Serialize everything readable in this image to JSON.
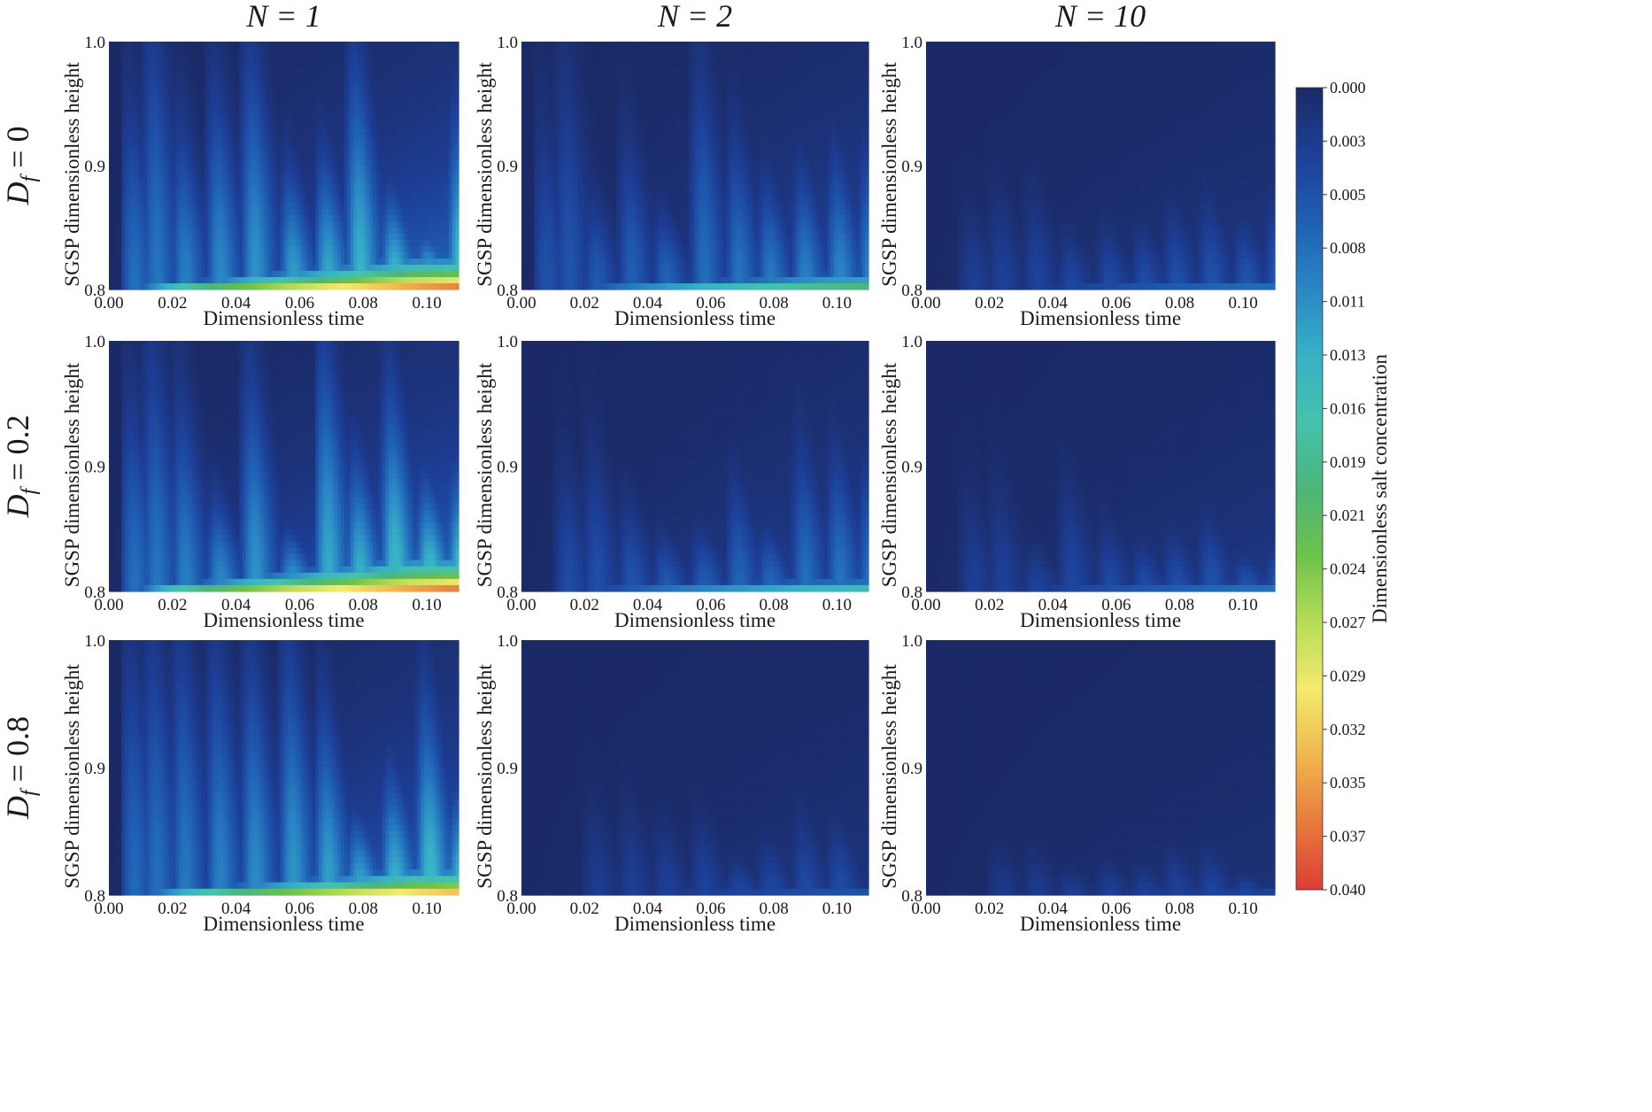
{
  "chart_data": {
    "type": "heatmap",
    "layout": "3x3 grid of contour plots with shared colorbar",
    "column_titles": [
      {
        "symbol": "N",
        "value": "1"
      },
      {
        "symbol": "N",
        "value": "2"
      },
      {
        "symbol": "N",
        "value": "10"
      }
    ],
    "row_titles": [
      {
        "symbol": "D",
        "subscript": "f",
        "value": "0"
      },
      {
        "symbol": "D",
        "subscript": "f",
        "value": "0.2"
      },
      {
        "symbol": "D",
        "subscript": "f",
        "value": "0.8"
      }
    ],
    "xlabel": "Dimensionless time",
    "ylabel": "SGSP dimensionless height",
    "xlim": [
      0.0,
      0.11
    ],
    "ylim": [
      0.8,
      1.0
    ],
    "xticks": [
      "0.00",
      "0.02",
      "0.04",
      "0.06",
      "0.08",
      "0.10"
    ],
    "yticks": [
      "0.8",
      "0.9",
      "1.0"
    ],
    "colorbar": {
      "label": "Dimensionless salt concentration",
      "range": [
        0.0,
        0.04
      ],
      "ticks": [
        "0.000",
        "0.003",
        "0.005",
        "0.008",
        "0.011",
        "0.013",
        "0.016",
        "0.019",
        "0.021",
        "0.024",
        "0.027",
        "0.029",
        "0.032",
        "0.035",
        "0.037",
        "0.040"
      ],
      "colormap": [
        "#1b2a66",
        "#1d3f97",
        "#1f5fb3",
        "#2a86c4",
        "#37b1c6",
        "#45c2ad",
        "#4db57a",
        "#6cc24a",
        "#b7dc57",
        "#f4ea6e",
        "#f0b64e",
        "#e87a3c",
        "#dc3d35"
      ]
    },
    "panels": [
      {
        "row": 0,
        "col": 0,
        "N": 1,
        "Df": 0,
        "pulse_times": [
          0.005,
          0.012,
          0.021,
          0.032,
          0.043,
          0.055,
          0.066,
          0.076,
          0.087,
          0.098,
          0.108
        ],
        "pulse_height_range": [
          0.03,
          0.16
        ],
        "bottom_layer_max": 0.04,
        "band_top_range": [
          0.8,
          0.823
        ]
      },
      {
        "row": 0,
        "col": 1,
        "N": 2,
        "Df": 0,
        "pulse_times": [
          0.005,
          0.012,
          0.021,
          0.032,
          0.043,
          0.055,
          0.066,
          0.076,
          0.087,
          0.098,
          0.108
        ],
        "pulse_height_range": [
          0.03,
          0.14
        ],
        "bottom_layer_max": 0.024,
        "band_top_range": [
          0.8,
          0.812
        ]
      },
      {
        "row": 0,
        "col": 2,
        "N": 10,
        "Df": 0,
        "pulse_times": [
          0.012,
          0.021,
          0.032,
          0.043,
          0.055,
          0.066,
          0.076,
          0.087,
          0.098,
          0.108
        ],
        "pulse_height_range": [
          0.02,
          0.06
        ],
        "bottom_layer_max": 0.011,
        "band_top_range": [
          0.8,
          0.807
        ]
      },
      {
        "row": 1,
        "col": 0,
        "N": 1,
        "Df": 0.2,
        "pulse_times": [
          0.005,
          0.012,
          0.021,
          0.032,
          0.043,
          0.055,
          0.066,
          0.076,
          0.087,
          0.098,
          0.108
        ],
        "pulse_height_range": [
          0.03,
          0.15
        ],
        "bottom_layer_max": 0.04,
        "band_top_range": [
          0.8,
          0.824
        ]
      },
      {
        "row": 1,
        "col": 1,
        "N": 2,
        "Df": 0.2,
        "pulse_times": [
          0.012,
          0.021,
          0.032,
          0.043,
          0.055,
          0.066,
          0.076,
          0.087,
          0.098,
          0.108
        ],
        "pulse_height_range": [
          0.03,
          0.09
        ],
        "bottom_layer_max": 0.019,
        "band_top_range": [
          0.8,
          0.81
        ]
      },
      {
        "row": 1,
        "col": 2,
        "N": 10,
        "Df": 0.2,
        "pulse_times": [
          0.012,
          0.021,
          0.032,
          0.043,
          0.055,
          0.066,
          0.076,
          0.087,
          0.098,
          0.108
        ],
        "pulse_height_range": [
          0.02,
          0.07
        ],
        "bottom_layer_max": 0.011,
        "band_top_range": [
          0.8,
          0.808
        ]
      },
      {
        "row": 2,
        "col": 0,
        "N": 1,
        "Df": 0.8,
        "pulse_times": [
          0.005,
          0.012,
          0.021,
          0.032,
          0.043,
          0.055,
          0.066,
          0.076,
          0.087,
          0.098,
          0.108
        ],
        "pulse_height_range": [
          0.04,
          0.17
        ],
        "bottom_layer_max": 0.037,
        "band_top_range": [
          0.8,
          0.818
        ]
      },
      {
        "row": 2,
        "col": 1,
        "N": 2,
        "Df": 0.8,
        "pulse_times": [
          0.021,
          0.032,
          0.043,
          0.055,
          0.066,
          0.076,
          0.087,
          0.098
        ],
        "pulse_height_range": [
          0.02,
          0.06
        ],
        "bottom_layer_max": 0.008,
        "band_top_range": [
          0.8,
          0.806
        ]
      },
      {
        "row": 2,
        "col": 2,
        "N": 10,
        "Df": 0.8,
        "pulse_times": [
          0.021,
          0.032,
          0.043,
          0.055,
          0.066,
          0.076,
          0.087,
          0.098
        ],
        "pulse_height_range": [
          0.01,
          0.03
        ],
        "bottom_layer_max": 0.006,
        "band_top_range": [
          0.8,
          0.805
        ]
      }
    ]
  }
}
